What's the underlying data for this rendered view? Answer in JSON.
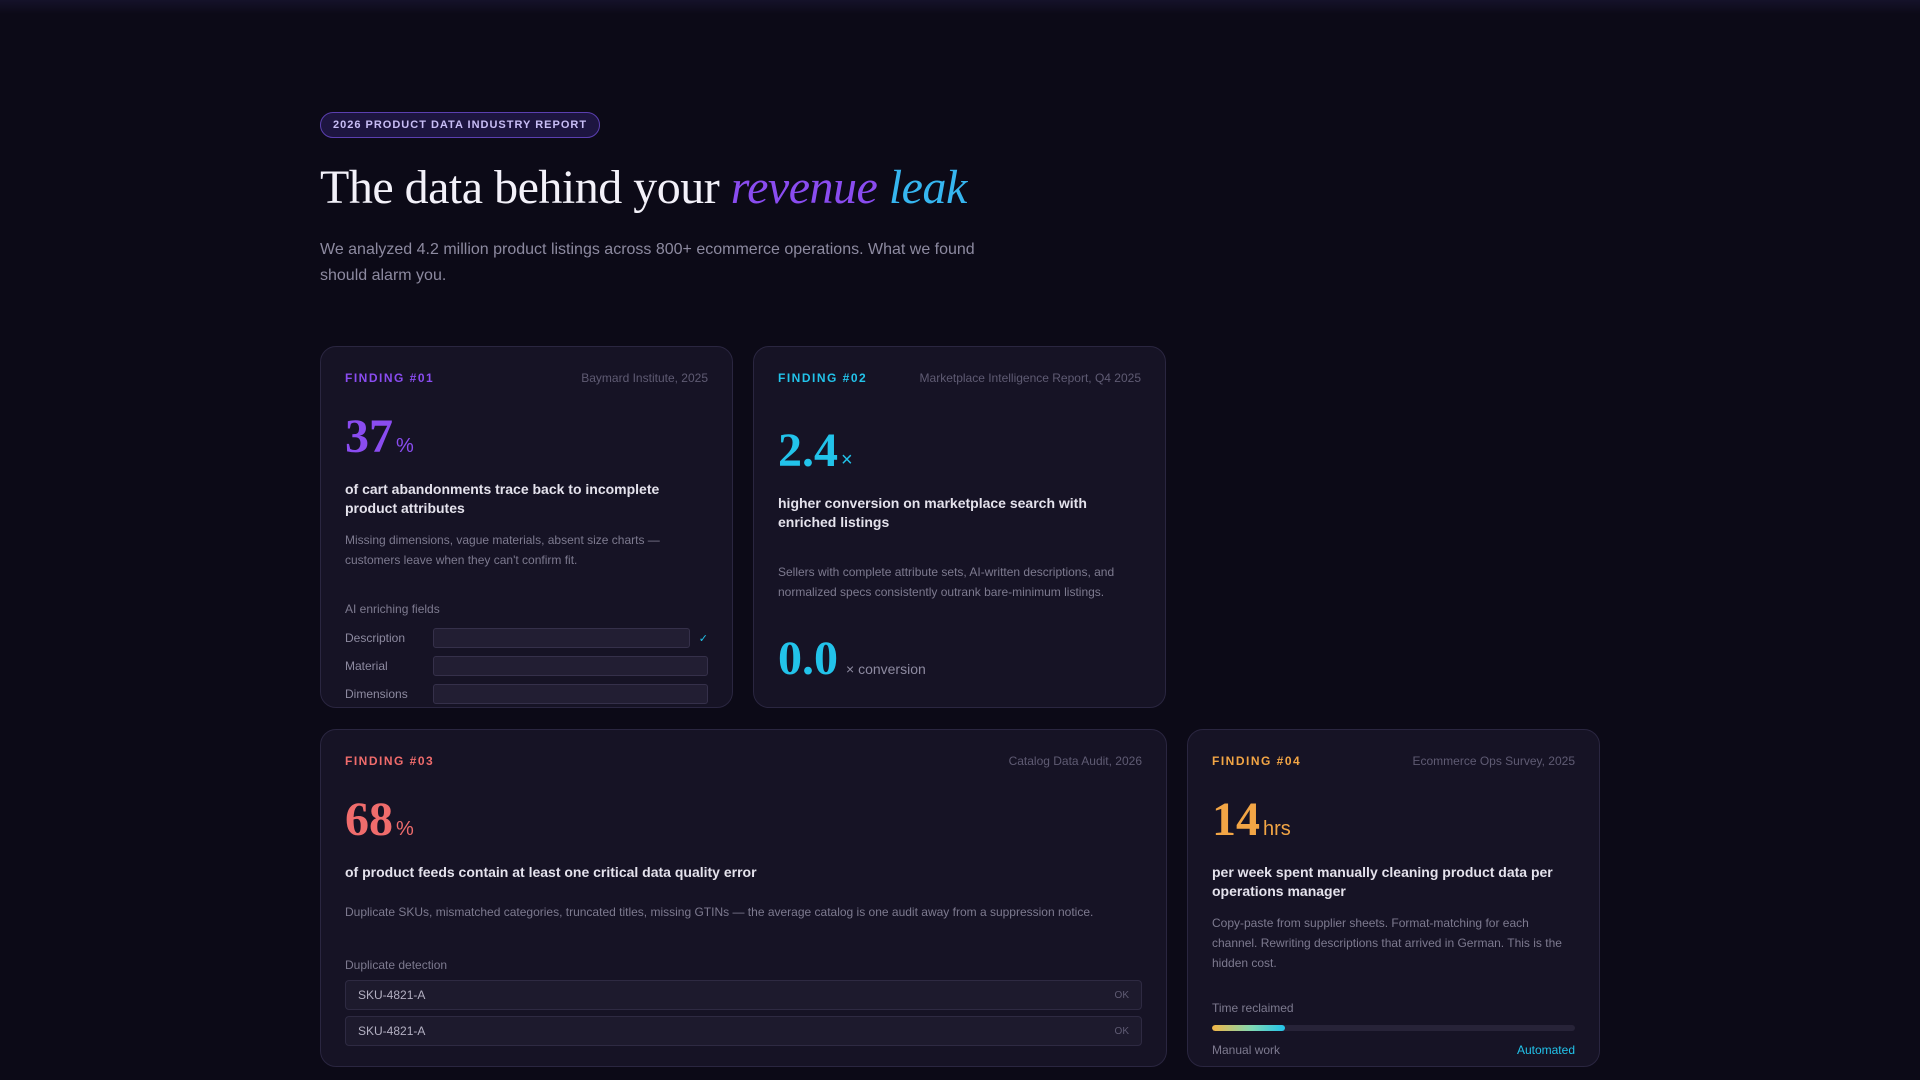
{
  "hero": {
    "badge": "2026 PRODUCT DATA INDUSTRY REPORT",
    "title_plain": "The data behind your ",
    "title_accent1": "revenue",
    "title_accent2": "leak",
    "subtitle": "We analyzed 4.2 million product listings across 800+ ecommerce operations. What we found should alarm you."
  },
  "findings": [
    {
      "tag": "FINDING #01",
      "source": "Baymard Institute, 2025",
      "number": "37",
      "unit": "%",
      "headline": "of cart abandonments trace back to incomplete product attributes",
      "description": "Missing dimensions, vague materials, absent size charts — customers leave when they can't confirm fit.",
      "widget_label": "AI enriching fields",
      "fields": [
        {
          "name": "Description",
          "fill": 1.0,
          "check": "✓"
        },
        {
          "name": "Material",
          "fill": 0.0,
          "check": ""
        },
        {
          "name": "Dimensions",
          "fill": 0.0,
          "check": ""
        }
      ]
    },
    {
      "tag": "FINDING #02",
      "source": "Marketplace Intelligence Report, Q4 2025",
      "number": "2.4",
      "unit": "×",
      "headline": "higher conversion on marketplace search with enriched listings",
      "description": "Sellers with complete attribute sets, AI-written descriptions, and normalized specs consistently outrank bare-minimum listings.",
      "counter_value": "0.0",
      "counter_suffix": "× conversion"
    },
    {
      "tag": "FINDING #03",
      "source": "Catalog Data Audit, 2026",
      "number": "68",
      "unit": "%",
      "headline": "of product feeds contain at least one critical data quality error",
      "description": "Duplicate SKUs, mismatched categories, truncated titles, missing GTINs — the average catalog is one audit away from a suppression notice.",
      "widget_label": "Duplicate detection",
      "skus": [
        {
          "id": "SKU-4821-A",
          "status": "OK"
        },
        {
          "id": "SKU-4821-A",
          "status": "OK"
        }
      ]
    },
    {
      "tag": "FINDING #04",
      "source": "Ecommerce Ops Survey, 2025",
      "number": "14",
      "unit": "hrs",
      "headline": "per week spent manually cleaning product data per operations manager",
      "description": "Copy-paste from supplier sheets. Format-matching for each channel. Rewriting descriptions that arrived in German. This is the hidden cost.",
      "widget_label": "Time reclaimed",
      "progress": 0.2,
      "progress_left": "Manual work",
      "progress_right": "Automated"
    }
  ],
  "colors": {
    "purple": "#8a4cf0",
    "cyan": "#22c3ea",
    "red": "#f06c6c",
    "orange": "#f2a545"
  }
}
